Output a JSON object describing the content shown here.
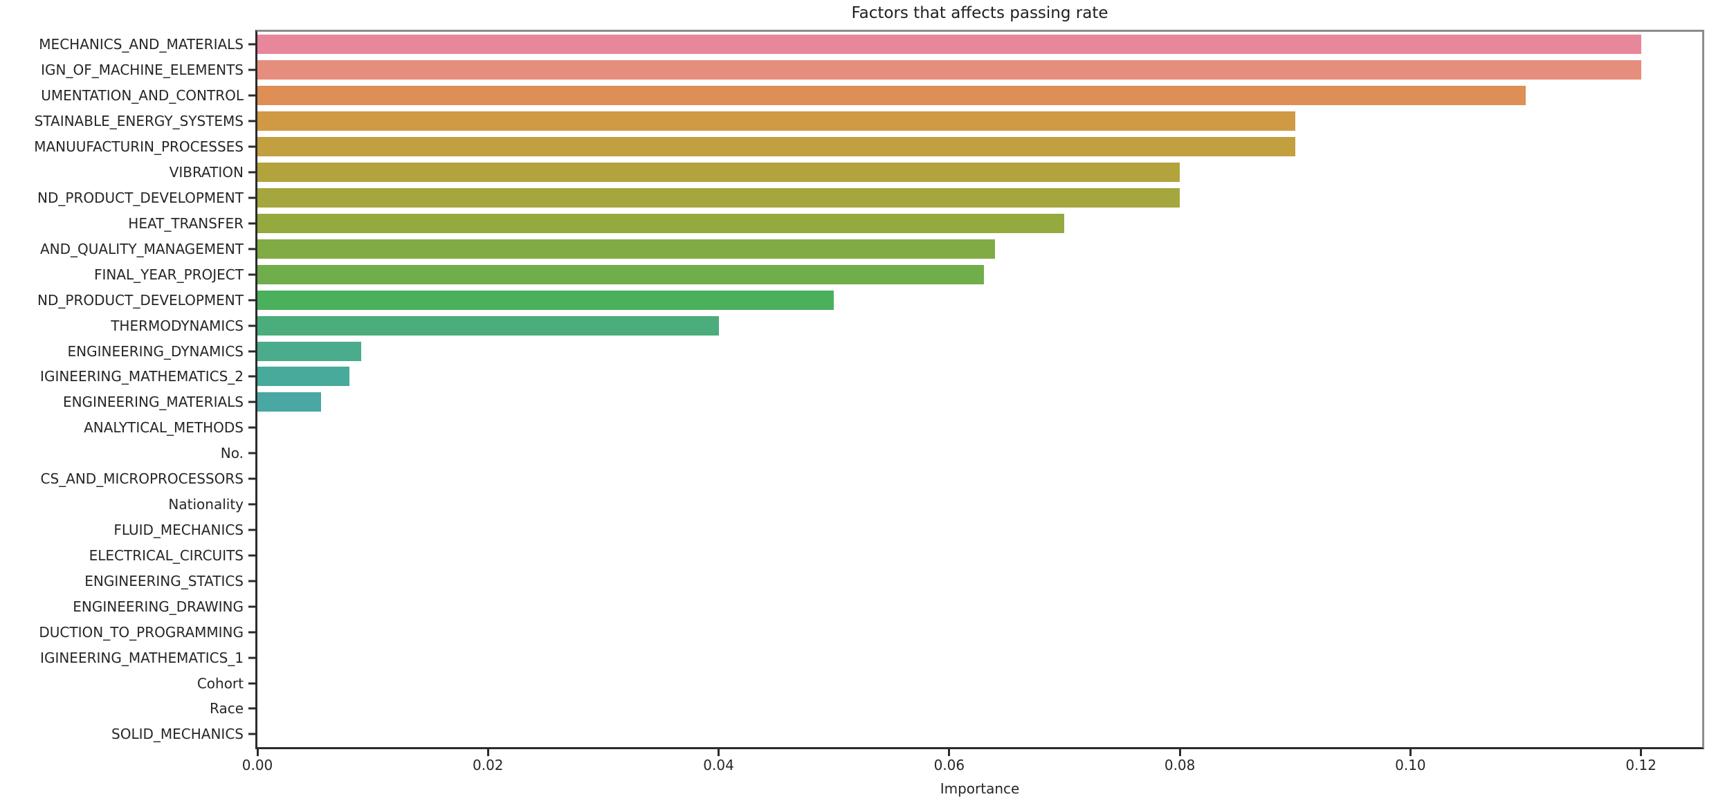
{
  "chart_data": {
    "type": "bar",
    "orientation": "horizontal",
    "title": "Factors that affects passing rate",
    "xlabel": "Importance",
    "ylabel": "",
    "grid": false,
    "legend": false,
    "xlim": [
      0,
      0.1253
    ],
    "x_tick_values": [
      0.0,
      0.02,
      0.04,
      0.06,
      0.08,
      0.1,
      0.12
    ],
    "x_tick_labels": [
      "0.00",
      "0.02",
      "0.04",
      "0.06",
      "0.08",
      "0.10",
      "0.12"
    ],
    "categories": [
      "MECHANICS_AND_MATERIALS",
      "IGN_OF_MACHINE_ELEMENTS",
      "UMENTATION_AND_CONTROL",
      "STAINABLE_ENERGY_SYSTEMS",
      "MANUUFACTURIN_PROCESSES",
      "VIBRATION",
      "ND_PRODUCT_DEVELOPMENT",
      "HEAT_TRANSFER",
      "AND_QUALITY_MANAGEMENT",
      "FINAL_YEAR_PROJECT",
      "ND_PRODUCT_DEVELOPMENT",
      "THERMODYNAMICS",
      "ENGINEERING_DYNAMICS",
      "IGINEERING_MATHEMATICS_2",
      "ENGINEERING_MATERIALS",
      "ANALYTICAL_METHODS",
      "No.",
      "CS_AND_MICROPROCESSORS",
      "Nationality",
      "FLUID_MECHANICS",
      "ELECTRICAL_CIRCUITS",
      "ENGINEERING_STATICS",
      "ENGINEERING_DRAWING",
      "DUCTION_TO_PROGRAMMING",
      "IGINEERING_MATHEMATICS_1",
      "Cohort",
      "Race",
      "SOLID_MECHANICS"
    ],
    "values": [
      0.12,
      0.12,
      0.11,
      0.09,
      0.09,
      0.08,
      0.08,
      0.07,
      0.064,
      0.063,
      0.05,
      0.04,
      0.009,
      0.008,
      0.0055,
      0,
      0,
      0,
      0,
      0,
      0,
      0,
      0,
      0,
      0,
      0,
      0,
      0
    ],
    "bar_colors": [
      "#e8879b",
      "#e68e7e",
      "#dd8f55",
      "#d09944",
      "#c29f3f",
      "#b2a33d",
      "#a5a63d",
      "#94a93e",
      "#81ac45",
      "#6fae4a",
      "#4bb05c",
      "#4bad7c",
      "#4aac8d",
      "#48aa9a",
      "#49a8a4",
      "#4aa7ad",
      "#4aa7ad",
      "#4aa7ad",
      "#4aa7ad",
      "#4aa7ad",
      "#4aa7ad",
      "#4aa7ad",
      "#4aa7ad",
      "#4aa7ad",
      "#4aa7ad",
      "#4aa7ad",
      "#4aa7ad",
      "#4aa7ad"
    ],
    "axis_color": "#2b2b2b",
    "text_color": "#262626",
    "background_color": "#ffffff"
  }
}
